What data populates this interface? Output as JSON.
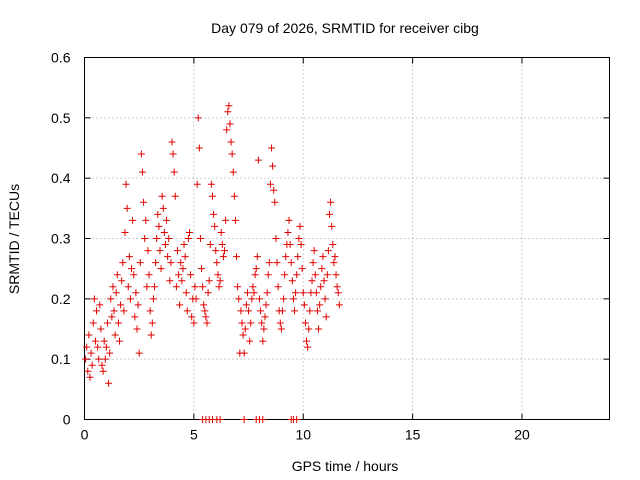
{
  "chart_data": {
    "type": "scatter",
    "title": "Day 079 of 2026, SRMTID for receiver cibg",
    "xlabel": "GPS time / hours",
    "ylabel": "SRMTID / TECUs",
    "xlim": [
      0,
      24
    ],
    "ylim": [
      0,
      0.6
    ],
    "xticks": [
      0,
      5,
      10,
      15,
      20
    ],
    "xtick_labels": [
      "0",
      "5",
      "10",
      "15",
      "20"
    ],
    "yticks": [
      0,
      0.1,
      0.2,
      0.3,
      0.4,
      0.5,
      0.6
    ],
    "ytick_labels": [
      "0",
      "0.1",
      "0.2",
      "0.3",
      "0.4",
      "0.5",
      "0.6"
    ],
    "grid": true,
    "legend": "none",
    "marker": "plus",
    "color": "#e00000",
    "series": [
      {
        "name": "SRMTID",
        "points": [
          [
            0.05,
            0.1
          ],
          [
            0.1,
            0.12
          ],
          [
            0.15,
            0.08
          ],
          [
            0.2,
            0.14
          ],
          [
            0.25,
            0.07
          ],
          [
            0.3,
            0.11
          ],
          [
            0.35,
            0.09
          ],
          [
            0.4,
            0.16
          ],
          [
            0.45,
            0.2
          ],
          [
            0.5,
            0.13
          ],
          [
            0.55,
            0.18
          ],
          [
            0.6,
            0.12
          ],
          [
            0.65,
            0.1
          ],
          [
            0.7,
            0.19
          ],
          [
            0.75,
            0.15
          ],
          [
            0.8,
            0.09
          ],
          [
            0.85,
            0.08
          ],
          [
            0.9,
            0.13
          ],
          [
            0.95,
            0.1
          ],
          [
            1.0,
            0.12
          ],
          [
            1.05,
            0.16
          ],
          [
            1.1,
            0.06
          ],
          [
            1.15,
            0.11
          ],
          [
            1.2,
            0.2
          ],
          [
            1.25,
            0.17
          ],
          [
            1.3,
            0.22
          ],
          [
            1.35,
            0.18
          ],
          [
            1.4,
            0.14
          ],
          [
            1.45,
            0.21
          ],
          [
            1.5,
            0.24
          ],
          [
            1.55,
            0.16
          ],
          [
            1.6,
            0.13
          ],
          [
            1.65,
            0.19
          ],
          [
            1.7,
            0.23
          ],
          [
            1.75,
            0.26
          ],
          [
            1.8,
            0.18
          ],
          [
            1.85,
            0.31
          ],
          [
            1.9,
            0.39
          ],
          [
            1.95,
            0.35
          ],
          [
            2.0,
            0.22
          ],
          [
            2.05,
            0.27
          ],
          [
            2.1,
            0.2
          ],
          [
            2.15,
            0.25
          ],
          [
            2.2,
            0.33
          ],
          [
            2.25,
            0.24
          ],
          [
            2.3,
            0.17
          ],
          [
            2.35,
            0.21
          ],
          [
            2.4,
            0.15
          ],
          [
            2.45,
            0.19
          ],
          [
            2.5,
            0.11
          ],
          [
            2.55,
            0.26
          ],
          [
            2.6,
            0.44
          ],
          [
            2.65,
            0.41
          ],
          [
            2.7,
            0.36
          ],
          [
            2.75,
            0.3
          ],
          [
            2.8,
            0.33
          ],
          [
            2.85,
            0.22
          ],
          [
            2.9,
            0.28
          ],
          [
            2.95,
            0.24
          ],
          [
            3.0,
            0.18
          ],
          [
            3.05,
            0.14
          ],
          [
            3.1,
            0.16
          ],
          [
            3.15,
            0.2
          ],
          [
            3.2,
            0.22
          ],
          [
            3.25,
            0.26
          ],
          [
            3.3,
            0.3
          ],
          [
            3.35,
            0.34
          ],
          [
            3.4,
            0.32
          ],
          [
            3.45,
            0.28
          ],
          [
            3.5,
            0.25
          ],
          [
            3.55,
            0.37
          ],
          [
            3.6,
            0.35
          ],
          [
            3.65,
            0.31
          ],
          [
            3.7,
            0.29
          ],
          [
            3.75,
            0.33
          ],
          [
            3.8,
            0.27
          ],
          [
            3.85,
            0.3
          ],
          [
            3.9,
            0.23
          ],
          [
            3.95,
            0.26
          ],
          [
            4.0,
            0.46
          ],
          [
            4.05,
            0.44
          ],
          [
            4.1,
            0.41
          ],
          [
            4.15,
            0.37
          ],
          [
            4.2,
            0.22
          ],
          [
            4.25,
            0.28
          ],
          [
            4.3,
            0.24
          ],
          [
            4.35,
            0.19
          ],
          [
            4.4,
            0.26
          ],
          [
            4.45,
            0.23
          ],
          [
            4.5,
            0.25
          ],
          [
            4.55,
            0.29
          ],
          [
            4.6,
            0.27
          ],
          [
            4.65,
            0.21
          ],
          [
            4.7,
            0.18
          ],
          [
            4.75,
            0.3
          ],
          [
            4.8,
            0.31
          ],
          [
            4.85,
            0.24
          ],
          [
            4.9,
            0.17
          ],
          [
            4.95,
            0.2
          ],
          [
            5.0,
            0.16
          ],
          [
            5.05,
            0.22
          ],
          [
            5.1,
            0.2
          ],
          [
            5.15,
            0.39
          ],
          [
            5.2,
            0.5
          ],
          [
            5.25,
            0.45
          ],
          [
            5.3,
            0.3
          ],
          [
            5.35,
            0.25
          ],
          [
            5.4,
            0.22
          ],
          [
            5.45,
            0.19
          ],
          [
            5.5,
            0.18
          ],
          [
            5.55,
            0.17
          ],
          [
            5.6,
            0.16
          ],
          [
            5.65,
            0.21
          ],
          [
            5.7,
            0.23
          ],
          [
            5.75,
            0.29
          ],
          [
            5.8,
            0.39
          ],
          [
            5.85,
            0.37
          ],
          [
            5.9,
            0.34
          ],
          [
            5.95,
            0.32
          ],
          [
            6.0,
            0.28
          ],
          [
            6.05,
            0.26
          ],
          [
            6.1,
            0.24
          ],
          [
            6.15,
            0.22
          ],
          [
            6.2,
            0.23
          ],
          [
            6.25,
            0.31
          ],
          [
            6.3,
            0.29
          ],
          [
            6.35,
            0.27
          ],
          [
            6.4,
            0.28
          ],
          [
            6.45,
            0.33
          ],
          [
            6.5,
            0.48
          ],
          [
            6.55,
            0.51
          ],
          [
            6.6,
            0.52
          ],
          [
            6.65,
            0.49
          ],
          [
            6.7,
            0.46
          ],
          [
            6.75,
            0.44
          ],
          [
            6.8,
            0.41
          ],
          [
            6.85,
            0.37
          ],
          [
            6.9,
            0.33
          ],
          [
            6.95,
            0.27
          ],
          [
            7.0,
            0.22
          ],
          [
            7.05,
            0.2
          ],
          [
            7.1,
            0.11
          ],
          [
            7.15,
            0.18
          ],
          [
            7.2,
            0.16
          ],
          [
            7.25,
            0.14
          ],
          [
            7.3,
            0.11
          ],
          [
            7.35,
            0.15
          ],
          [
            7.4,
            0.19
          ],
          [
            7.45,
            0.21
          ],
          [
            7.5,
            0.18
          ],
          [
            7.55,
            0.13
          ],
          [
            7.6,
            0.16
          ],
          [
            7.65,
            0.2
          ],
          [
            7.7,
            0.22
          ],
          [
            7.75,
            0.21
          ],
          [
            7.8,
            0.24
          ],
          [
            7.85,
            0.25
          ],
          [
            7.9,
            0.27
          ],
          [
            7.95,
            0.43
          ],
          [
            8.0,
            0.2
          ],
          [
            8.05,
            0.18
          ],
          [
            8.1,
            0.16
          ],
          [
            8.15,
            0.13
          ],
          [
            8.2,
            0.15
          ],
          [
            8.25,
            0.17
          ],
          [
            8.3,
            0.19
          ],
          [
            8.35,
            0.21
          ],
          [
            8.4,
            0.24
          ],
          [
            8.45,
            0.26
          ],
          [
            8.5,
            0.39
          ],
          [
            8.55,
            0.45
          ],
          [
            8.6,
            0.42
          ],
          [
            8.65,
            0.38
          ],
          [
            8.7,
            0.36
          ],
          [
            8.75,
            0.3
          ],
          [
            8.8,
            0.26
          ],
          [
            8.85,
            0.22
          ],
          [
            8.9,
            0.18
          ],
          [
            8.95,
            0.16
          ],
          [
            9.0,
            0.15
          ],
          [
            9.05,
            0.18
          ],
          [
            9.1,
            0.2
          ],
          [
            9.15,
            0.24
          ],
          [
            9.2,
            0.27
          ],
          [
            9.25,
            0.29
          ],
          [
            9.3,
            0.31
          ],
          [
            9.35,
            0.33
          ],
          [
            9.4,
            0.29
          ],
          [
            9.45,
            0.26
          ],
          [
            9.5,
            0.23
          ],
          [
            9.55,
            0.2
          ],
          [
            9.6,
            0.18
          ],
          [
            9.65,
            0.21
          ],
          [
            9.7,
            0.24
          ],
          [
            9.75,
            0.27
          ],
          [
            9.8,
            0.3
          ],
          [
            9.85,
            0.32
          ],
          [
            9.9,
            0.29
          ],
          [
            9.95,
            0.25
          ],
          [
            10.0,
            0.21
          ],
          [
            10.05,
            0.19
          ],
          [
            10.1,
            0.16
          ],
          [
            10.15,
            0.13
          ],
          [
            10.2,
            0.12
          ],
          [
            10.25,
            0.15
          ],
          [
            10.3,
            0.18
          ],
          [
            10.35,
            0.21
          ],
          [
            10.4,
            0.23
          ],
          [
            10.45,
            0.26
          ],
          [
            10.5,
            0.28
          ],
          [
            10.55,
            0.24
          ],
          [
            10.6,
            0.21
          ],
          [
            10.65,
            0.18
          ],
          [
            10.7,
            0.15
          ],
          [
            10.75,
            0.19
          ],
          [
            10.8,
            0.22
          ],
          [
            10.85,
            0.25
          ],
          [
            10.9,
            0.27
          ],
          [
            10.95,
            0.23
          ],
          [
            11.0,
            0.2
          ],
          [
            11.05,
            0.17
          ],
          [
            11.1,
            0.24
          ],
          [
            11.15,
            0.28
          ],
          [
            11.2,
            0.34
          ],
          [
            11.25,
            0.36
          ],
          [
            11.3,
            0.32
          ],
          [
            11.35,
            0.29
          ],
          [
            11.4,
            0.26
          ],
          [
            11.45,
            0.27
          ],
          [
            11.5,
            0.24
          ],
          [
            11.55,
            0.22
          ],
          [
            11.6,
            0.21
          ],
          [
            11.65,
            0.19
          ],
          [
            5.4,
            0
          ],
          [
            5.55,
            0
          ],
          [
            5.7,
            0
          ],
          [
            5.85,
            0
          ],
          [
            6.05,
            0
          ],
          [
            6.2,
            0
          ],
          [
            7.3,
            0
          ],
          [
            7.85,
            0
          ],
          [
            8.0,
            0
          ],
          [
            8.15,
            0
          ],
          [
            9.45,
            0
          ],
          [
            9.55,
            0
          ],
          [
            9.7,
            0
          ]
        ]
      }
    ]
  }
}
